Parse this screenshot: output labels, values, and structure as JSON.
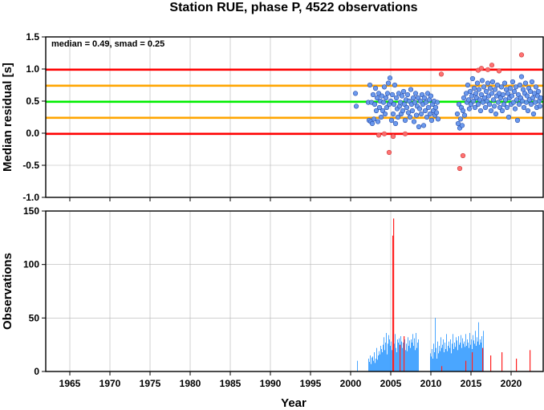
{
  "chart_data": [
    {
      "type": "scatter",
      "title": "Station RUE, phase P, 4522 observations",
      "xlabel": "",
      "ylabel": "Median residual [s]",
      "xlim": [
        1962,
        2024
      ],
      "ylim": [
        -1.0,
        1.5
      ],
      "x_ticks": [
        1965,
        1970,
        1975,
        1980,
        1985,
        1990,
        1995,
        2000,
        2005,
        2010,
        2015,
        2020
      ],
      "y_ticks": [
        -1.0,
        -0.5,
        0.0,
        0.5,
        1.0,
        1.5
      ],
      "y_tick_labels": [
        "-1.0",
        "-0.5",
        "0.0",
        "0.5",
        "1.0",
        "1.5"
      ],
      "grid": true,
      "annotation": "median = 0.49, smad = 0.25",
      "reference_lines": [
        {
          "y": 0.99,
          "color": "#ff0000"
        },
        {
          "y": 0.74,
          "color": "#ffa500"
        },
        {
          "y": 0.49,
          "color": "#00ee00"
        },
        {
          "y": 0.24,
          "color": "#ffa500"
        },
        {
          "y": -0.01,
          "color": "#ff0000"
        }
      ],
      "series": [
        {
          "color": "#6495ed",
          "points": [
            [
              2000.6,
              0.62
            ],
            [
              2000.7,
              0.42
            ],
            [
              2002.2,
              0.48
            ],
            [
              2002.3,
              0.2
            ],
            [
              2002.4,
              0.75
            ],
            [
              2002.5,
              0.18
            ],
            [
              2002.6,
              0.48
            ],
            [
              2002.7,
              0.15
            ],
            [
              2002.8,
              0.6
            ],
            [
              2002.9,
              0.22
            ],
            [
              2003.0,
              0.45
            ],
            [
              2003.1,
              0.7
            ],
            [
              2003.2,
              0.35
            ],
            [
              2003.3,
              0.55
            ],
            [
              2003.4,
              0.18
            ],
            [
              2003.5,
              0.62
            ],
            [
              2003.6,
              0.4
            ],
            [
              2003.7,
              0.5
            ],
            [
              2003.8,
              0.25
            ],
            [
              2003.9,
              0.58
            ],
            [
              2004.0,
              0.35
            ],
            [
              2004.1,
              0.48
            ],
            [
              2004.2,
              0.72
            ],
            [
              2004.3,
              0.3
            ],
            [
              2004.4,
              0.55
            ],
            [
              2004.5,
              0.4
            ],
            [
              2004.6,
              0.62
            ],
            [
              2004.7,
              0.78
            ],
            [
              2004.8,
              0.45
            ],
            [
              2004.9,
              0.86
            ],
            [
              2005.0,
              0.5
            ],
            [
              2005.1,
              0.2
            ],
            [
              2005.2,
              0.6
            ],
            [
              2005.3,
              0.3
            ],
            [
              2005.4,
              0.45
            ],
            [
              2005.5,
              0.75
            ],
            [
              2005.6,
              0.15
            ],
            [
              2005.7,
              0.55
            ],
            [
              2005.8,
              0.38
            ],
            [
              2005.9,
              0.25
            ],
            [
              2006.0,
              0.62
            ],
            [
              2006.1,
              0.42
            ],
            [
              2006.2,
              0.48
            ],
            [
              2006.3,
              0.3
            ],
            [
              2006.4,
              0.58
            ],
            [
              2006.5,
              0.35
            ],
            [
              2006.6,
              0.65
            ],
            [
              2006.7,
              0.45
            ],
            [
              2006.8,
              0.2
            ],
            [
              2006.9,
              0.52
            ],
            [
              2007.0,
              0.4
            ],
            [
              2007.1,
              0.6
            ],
            [
              2007.2,
              0.32
            ],
            [
              2007.3,
              0.5
            ],
            [
              2007.4,
              0.25
            ],
            [
              2007.5,
              0.68
            ],
            [
              2007.6,
              0.45
            ],
            [
              2007.7,
              0.35
            ],
            [
              2007.8,
              0.55
            ],
            [
              2007.9,
              0.18
            ],
            [
              2008.0,
              0.48
            ],
            [
              2008.1,
              0.62
            ],
            [
              2008.2,
              0.28
            ],
            [
              2008.3,
              0.42
            ],
            [
              2008.4,
              0.55
            ],
            [
              2008.5,
              0.1
            ],
            [
              2008.6,
              0.38
            ],
            [
              2008.7,
              0.5
            ],
            [
              2008.8,
              0.3
            ],
            [
              2008.9,
              0.6
            ],
            [
              2009.0,
              0.45
            ],
            [
              2009.1,
              0.12
            ],
            [
              2009.2,
              0.55
            ],
            [
              2009.3,
              0.35
            ],
            [
              2009.4,
              0.48
            ],
            [
              2009.5,
              0.25
            ],
            [
              2009.6,
              0.62
            ],
            [
              2009.7,
              0.4
            ],
            [
              2009.8,
              0.52
            ],
            [
              2009.9,
              0.3
            ],
            [
              2010.0,
              0.58
            ],
            [
              2010.1,
              0.2
            ],
            [
              2010.2,
              0.45
            ],
            [
              2010.3,
              0.35
            ],
            [
              2010.4,
              0.5
            ],
            [
              2010.5,
              0.28
            ],
            [
              2010.6,
              0.4
            ],
            [
              2010.7,
              0.32
            ],
            [
              2010.8,
              0.48
            ],
            [
              2010.9,
              0.22
            ],
            [
              2013.3,
              0.3
            ],
            [
              2013.4,
              0.15
            ],
            [
              2013.5,
              0.45
            ],
            [
              2013.6,
              0.08
            ],
            [
              2013.7,
              0.22
            ],
            [
              2013.8,
              0.4
            ],
            [
              2013.9,
              0.12
            ],
            [
              2014.0,
              0.35
            ],
            [
              2014.1,
              0.55
            ],
            [
              2014.2,
              0.28
            ],
            [
              2014.4,
              0.62
            ],
            [
              2014.5,
              0.48
            ],
            [
              2014.6,
              0.75
            ],
            [
              2014.7,
              0.52
            ],
            [
              2014.8,
              0.38
            ],
            [
              2014.9,
              0.65
            ],
            [
              2015.0,
              0.45
            ],
            [
              2015.1,
              0.58
            ],
            [
              2015.2,
              0.85
            ],
            [
              2015.3,
              0.5
            ],
            [
              2015.4,
              0.7
            ],
            [
              2015.5,
              0.4
            ],
            [
              2015.6,
              0.62
            ],
            [
              2015.7,
              0.55
            ],
            [
              2015.8,
              0.78
            ],
            [
              2015.9,
              0.45
            ],
            [
              2016.0,
              0.68
            ],
            [
              2016.1,
              0.52
            ],
            [
              2016.2,
              0.35
            ],
            [
              2016.3,
              0.6
            ],
            [
              2016.4,
              0.82
            ],
            [
              2016.5,
              0.48
            ],
            [
              2016.6,
              0.72
            ],
            [
              2016.7,
              0.55
            ],
            [
              2016.8,
              0.4
            ],
            [
              2016.9,
              0.65
            ],
            [
              2017.0,
              0.5
            ],
            [
              2017.1,
              0.78
            ],
            [
              2017.2,
              0.58
            ],
            [
              2017.3,
              0.45
            ],
            [
              2017.4,
              0.7
            ],
            [
              2017.5,
              0.35
            ],
            [
              2017.6,
              0.62
            ],
            [
              2017.7,
              0.8
            ],
            [
              2017.8,
              0.52
            ],
            [
              2017.9,
              0.42
            ],
            [
              2018.0,
              0.68
            ],
            [
              2018.1,
              0.3
            ],
            [
              2018.2,
              0.58
            ],
            [
              2018.3,
              0.75
            ],
            [
              2018.4,
              0.48
            ],
            [
              2018.5,
              0.62
            ],
            [
              2018.6,
              0.4
            ],
            [
              2018.7,
              0.55
            ],
            [
              2018.8,
              0.72
            ],
            [
              2018.9,
              0.35
            ],
            [
              2019.0,
              0.6
            ],
            [
              2019.1,
              0.45
            ],
            [
              2019.2,
              0.78
            ],
            [
              2019.3,
              0.52
            ],
            [
              2019.4,
              0.68
            ],
            [
              2019.5,
              0.4
            ],
            [
              2019.6,
              0.62
            ],
            [
              2019.7,
              0.25
            ],
            [
              2019.8,
              0.55
            ],
            [
              2019.9,
              0.7
            ],
            [
              2020.0,
              0.45
            ],
            [
              2020.1,
              0.58
            ],
            [
              2020.2,
              0.8
            ],
            [
              2020.3,
              0.48
            ],
            [
              2020.4,
              0.65
            ],
            [
              2020.5,
              0.38
            ],
            [
              2020.6,
              0.72
            ],
            [
              2020.7,
              0.52
            ],
            [
              2020.8,
              0.2
            ],
            [
              2020.9,
              0.6
            ],
            [
              2021.0,
              0.45
            ],
            [
              2021.1,
              0.75
            ],
            [
              2021.2,
              0.55
            ],
            [
              2021.3,
              0.88
            ],
            [
              2021.4,
              0.5
            ],
            [
              2021.5,
              0.68
            ],
            [
              2021.6,
              0.4
            ],
            [
              2021.7,
              0.62
            ],
            [
              2021.8,
              0.78
            ],
            [
              2021.9,
              0.48
            ],
            [
              2022.0,
              0.58
            ],
            [
              2022.1,
              0.35
            ],
            [
              2022.2,
              0.7
            ],
            [
              2022.3,
              0.52
            ],
            [
              2022.4,
              0.65
            ],
            [
              2022.5,
              0.45
            ],
            [
              2022.6,
              0.8
            ],
            [
              2022.7,
              0.55
            ],
            [
              2022.8,
              0.3
            ],
            [
              2022.9,
              0.62
            ],
            [
              2023.0,
              0.48
            ],
            [
              2023.1,
              0.72
            ],
            [
              2023.2,
              0.4
            ],
            [
              2023.3,
              0.58
            ],
            [
              2023.4,
              0.65
            ],
            [
              2023.5,
              0.5
            ],
            [
              2023.6,
              0.42
            ],
            [
              2023.7,
              0.55
            ]
          ]
        },
        {
          "color": "#ff6a6a",
          "points": [
            [
              2003.5,
              -0.03
            ],
            [
              2004.2,
              -0.01
            ],
            [
              2004.8,
              -0.3
            ],
            [
              2005.3,
              -0.05
            ],
            [
              2006.8,
              -0.01
            ],
            [
              2011.3,
              0.92
            ],
            [
              2013.6,
              -0.55
            ],
            [
              2014.0,
              -0.35
            ],
            [
              2015.9,
              0.98
            ],
            [
              2016.3,
              1.01
            ],
            [
              2017.1,
              0.99
            ],
            [
              2017.6,
              1.06
            ],
            [
              2018.5,
              0.97
            ],
            [
              2021.3,
              1.22
            ]
          ]
        }
      ]
    },
    {
      "type": "bar",
      "title": "",
      "xlabel": "Year",
      "ylabel": "Observations",
      "xlim": [
        1962,
        2024
      ],
      "ylim": [
        0,
        150
      ],
      "x_ticks": [
        1965,
        1970,
        1975,
        1980,
        1985,
        1990,
        1995,
        2000,
        2005,
        2010,
        2015,
        2020
      ],
      "y_ticks": [
        0,
        50,
        100,
        150
      ],
      "grid": true,
      "series": [
        {
          "color": "#1e90ff",
          "start_year": 2000.8,
          "bin_years": 0.1,
          "values": [
            10,
            0,
            0,
            0,
            0,
            0,
            0,
            0,
            0,
            0,
            0,
            0,
            0,
            0,
            12,
            9,
            15,
            7,
            13,
            14,
            10,
            18,
            8,
            12,
            22,
            11,
            15,
            19,
            16,
            24,
            21,
            18,
            25,
            32,
            20,
            27,
            36,
            16,
            26,
            34,
            30,
            24,
            28,
            20,
            32,
            22,
            26,
            35,
            22,
            18,
            30,
            27,
            31,
            24,
            33,
            28,
            22,
            27,
            25,
            30,
            20,
            26,
            19,
            32,
            24,
            29,
            22,
            30,
            27,
            35,
            24,
            31,
            20,
            36,
            22,
            27,
            30,
            0,
            0,
            0,
            0,
            0,
            0,
            0,
            0,
            0,
            0,
            0,
            0,
            0,
            0,
            17,
            14,
            21,
            12,
            26,
            18,
            50,
            22,
            12,
            28,
            17,
            24,
            19,
            32,
            22,
            25,
            30,
            18,
            27,
            21,
            35,
            19,
            24,
            28,
            22,
            30,
            17,
            26,
            35,
            21,
            27,
            23,
            32,
            29,
            20,
            33,
            25,
            27,
            34,
            22,
            31,
            26,
            28,
            23,
            35,
            24,
            30,
            27,
            22,
            36,
            25,
            30,
            21,
            34,
            29,
            26,
            38,
            24,
            32,
            28,
            46,
            25,
            30,
            27,
            33,
            22,
            38
          ]
        },
        {
          "color": "#ff2020",
          "points": [
            [
              2005.3,
              143
            ],
            [
              2005.2,
              127
            ],
            [
              2006.1,
              25
            ],
            [
              2006.6,
              33
            ],
            [
              2011.3,
              5
            ],
            [
              2014.3,
              10
            ],
            [
              2015.1,
              18
            ],
            [
              2016.4,
              22
            ],
            [
              2017.4,
              15
            ],
            [
              2018.8,
              18
            ],
            [
              2020.6,
              12
            ],
            [
              2022.3,
              20
            ]
          ]
        }
      ]
    }
  ]
}
